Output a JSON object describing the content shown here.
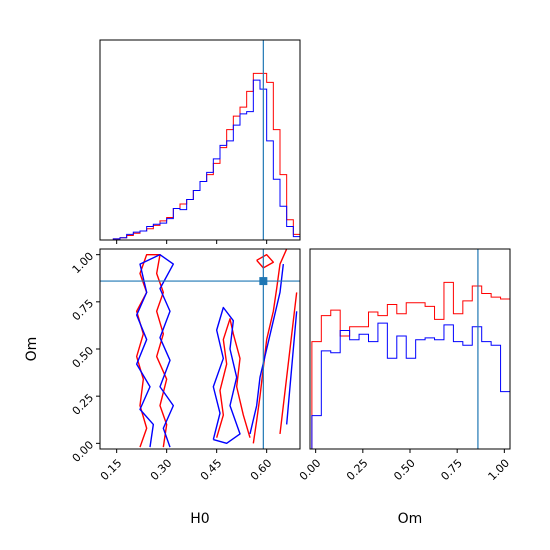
{
  "colors": {
    "series_a": "#ff0000",
    "series_b": "#0000ff",
    "truth": "#1f77b4"
  },
  "chart_data": {
    "type": "corner",
    "parameters": [
      "H0",
      "Om"
    ],
    "truth": {
      "H0": 0.59,
      "Om": 0.86
    },
    "panels": [
      {
        "id": "hist-H0",
        "type": "histogram",
        "xlim": [
          0.1,
          0.7
        ],
        "bin_edges": [
          0.1,
          0.12,
          0.14,
          0.16,
          0.18,
          0.2,
          0.22,
          0.24,
          0.26,
          0.28,
          0.3,
          0.32,
          0.34,
          0.36,
          0.38,
          0.4,
          0.42,
          0.44,
          0.46,
          0.48,
          0.5,
          0.52,
          0.54,
          0.56,
          0.58,
          0.6,
          0.62,
          0.64,
          0.66,
          0.68,
          0.7
        ],
        "series": [
          {
            "color": "#ff0000",
            "counts": [
              0,
              0,
              1,
              2,
              4,
              6,
              8,
              10,
              13,
              17,
              20,
              28,
              32,
              36,
              44,
              52,
              58,
              68,
              82,
              98,
              110,
              118,
              132,
              148,
              148,
              140,
              98,
              58,
              18,
              5
            ]
          },
          {
            "color": "#0000ff",
            "counts": [
              0,
              0,
              1,
              2,
              5,
              7,
              8,
              12,
              14,
              15,
              19,
              28,
              27,
              36,
              44,
              52,
              60,
              72,
              84,
              88,
              102,
              112,
              114,
              142,
              134,
              88,
              54,
              30,
              12,
              3
            ]
          }
        ]
      },
      {
        "id": "hist-Om",
        "type": "histogram",
        "xlim": [
          -0.03,
          1.03
        ],
        "bin_edges": [
          -0.02,
          0.03,
          0.08,
          0.13,
          0.18,
          0.23,
          0.28,
          0.33,
          0.38,
          0.43,
          0.48,
          0.53,
          0.58,
          0.63,
          0.68,
          0.73,
          0.78,
          0.83,
          0.88,
          0.93,
          0.98,
          1.03
        ],
        "series": [
          {
            "color": "#ff0000",
            "counts": [
              58,
              72,
              75,
              61,
              66,
              66,
              74,
              72,
              78,
              73,
              79,
              79,
              77,
              70,
              90,
              73,
              80,
              88,
              84,
              82,
              81
            ]
          },
          {
            "color": "#0000ff",
            "counts": [
              18,
              53,
              52,
              64,
              59,
              62,
              58,
              68,
              49,
              61,
              49,
              59,
              60,
              59,
              67,
              58,
              56,
              66,
              58,
              56,
              31
            ]
          }
        ]
      },
      {
        "id": "contour-H0-Om",
        "type": "contour",
        "xlabel": "H0",
        "ylabel": "Om",
        "xlim": [
          0.1,
          0.7
        ],
        "ylim": [
          -0.03,
          1.03
        ],
        "series": [
          {
            "color": "#ff0000",
            "contours": [
              [
                [
                  0.22,
                  -0.02
                ],
                [
                  0.24,
                  0.08
                ],
                [
                  0.22,
                  0.2
                ],
                [
                  0.23,
                  0.34
                ],
                [
                  0.21,
                  0.46
                ],
                [
                  0.23,
                  0.58
                ],
                [
                  0.21,
                  0.7
                ],
                [
                  0.24,
                  0.8
                ],
                [
                  0.22,
                  0.9
                ],
                [
                  0.24,
                  1.0
                ],
                [
                  0.28,
                  1.0
                ],
                [
                  0.27,
                  0.9
                ],
                [
                  0.29,
                  0.8
                ],
                [
                  0.27,
                  0.7
                ],
                [
                  0.29,
                  0.58
                ],
                [
                  0.27,
                  0.46
                ],
                [
                  0.3,
                  0.34
                ],
                [
                  0.28,
                  0.2
                ],
                [
                  0.3,
                  0.1
                ],
                [
                  0.29,
                  -0.02
                ]
              ],
              [
                [
                  0.45,
                  0.03
                ],
                [
                  0.47,
                  0.15
                ],
                [
                  0.46,
                  0.28
                ],
                [
                  0.48,
                  0.42
                ],
                [
                  0.47,
                  0.55
                ],
                [
                  0.49,
                  0.66
                ],
                [
                  0.5,
                  0.58
                ],
                [
                  0.52,
                  0.45
                ],
                [
                  0.51,
                  0.3
                ],
                [
                  0.53,
                  0.15
                ],
                [
                  0.55,
                  0.03
                ]
              ],
              [
                [
                  0.56,
                  0.0
                ],
                [
                  0.57,
                  0.12
                ],
                [
                  0.58,
                  0.25
                ],
                [
                  0.59,
                  0.4
                ],
                [
                  0.6,
                  0.55
                ],
                [
                  0.62,
                  0.7
                ],
                [
                  0.63,
                  0.82
                ],
                [
                  0.64,
                  0.95
                ],
                [
                  0.66,
                  1.03
                ]
              ],
              [
                [
                  0.64,
                  0.05
                ],
                [
                  0.65,
                  0.2
                ],
                [
                  0.66,
                  0.35
                ],
                [
                  0.67,
                  0.5
                ],
                [
                  0.68,
                  0.65
                ],
                [
                  0.69,
                  0.8
                ]
              ],
              [
                [
                  0.57,
                  0.97
                ],
                [
                  0.59,
                  0.93
                ],
                [
                  0.62,
                  0.96
                ],
                [
                  0.6,
                  1.0
                ],
                [
                  0.57,
                  0.97
                ]
              ]
            ]
          },
          {
            "color": "#0000ff",
            "contours": [
              [
                [
                  0.25,
                  -0.02
                ],
                [
                  0.26,
                  0.1
                ],
                [
                  0.22,
                  0.18
                ],
                [
                  0.25,
                  0.3
                ],
                [
                  0.21,
                  0.42
                ],
                [
                  0.24,
                  0.55
                ],
                [
                  0.21,
                  0.68
                ],
                [
                  0.24,
                  0.8
                ],
                [
                  0.22,
                  0.95
                ],
                [
                  0.28,
                  1.0
                ],
                [
                  0.32,
                  0.95
                ],
                [
                  0.28,
                  0.82
                ],
                [
                  0.31,
                  0.7
                ],
                [
                  0.28,
                  0.56
                ],
                [
                  0.31,
                  0.44
                ],
                [
                  0.28,
                  0.3
                ],
                [
                  0.32,
                  0.2
                ],
                [
                  0.29,
                  0.08
                ],
                [
                  0.31,
                  -0.02
                ]
              ],
              [
                [
                  0.44,
                  0.02
                ],
                [
                  0.46,
                  0.16
                ],
                [
                  0.44,
                  0.3
                ],
                [
                  0.47,
                  0.45
                ],
                [
                  0.45,
                  0.6
                ],
                [
                  0.47,
                  0.72
                ],
                [
                  0.5,
                  0.65
                ],
                [
                  0.49,
                  0.5
                ],
                [
                  0.51,
                  0.35
                ],
                [
                  0.49,
                  0.2
                ],
                [
                  0.52,
                  0.05
                ],
                [
                  0.48,
                  0.0
                ],
                [
                  0.44,
                  0.02
                ]
              ],
              [
                [
                  0.55,
                  0.05
                ],
                [
                  0.57,
                  0.2
                ],
                [
                  0.58,
                  0.35
                ],
                [
                  0.6,
                  0.5
                ],
                [
                  0.62,
                  0.65
                ],
                [
                  0.64,
                  0.8
                ],
                [
                  0.65,
                  0.95
                ]
              ],
              [
                [
                  0.66,
                  0.1
                ],
                [
                  0.67,
                  0.3
                ],
                [
                  0.68,
                  0.5
                ],
                [
                  0.69,
                  0.7
                ]
              ]
            ]
          }
        ]
      }
    ],
    "tick_labels": {
      "H0": [
        "0.15",
        "0.30",
        "0.45",
        "0.60"
      ],
      "Om": [
        "0.00",
        "0.25",
        "0.50",
        "0.75",
        "1.00"
      ]
    },
    "tick_values": {
      "H0": [
        0.15,
        0.3,
        0.45,
        0.6
      ],
      "Om": [
        0.0,
        0.25,
        0.5,
        0.75,
        1.0
      ]
    }
  }
}
